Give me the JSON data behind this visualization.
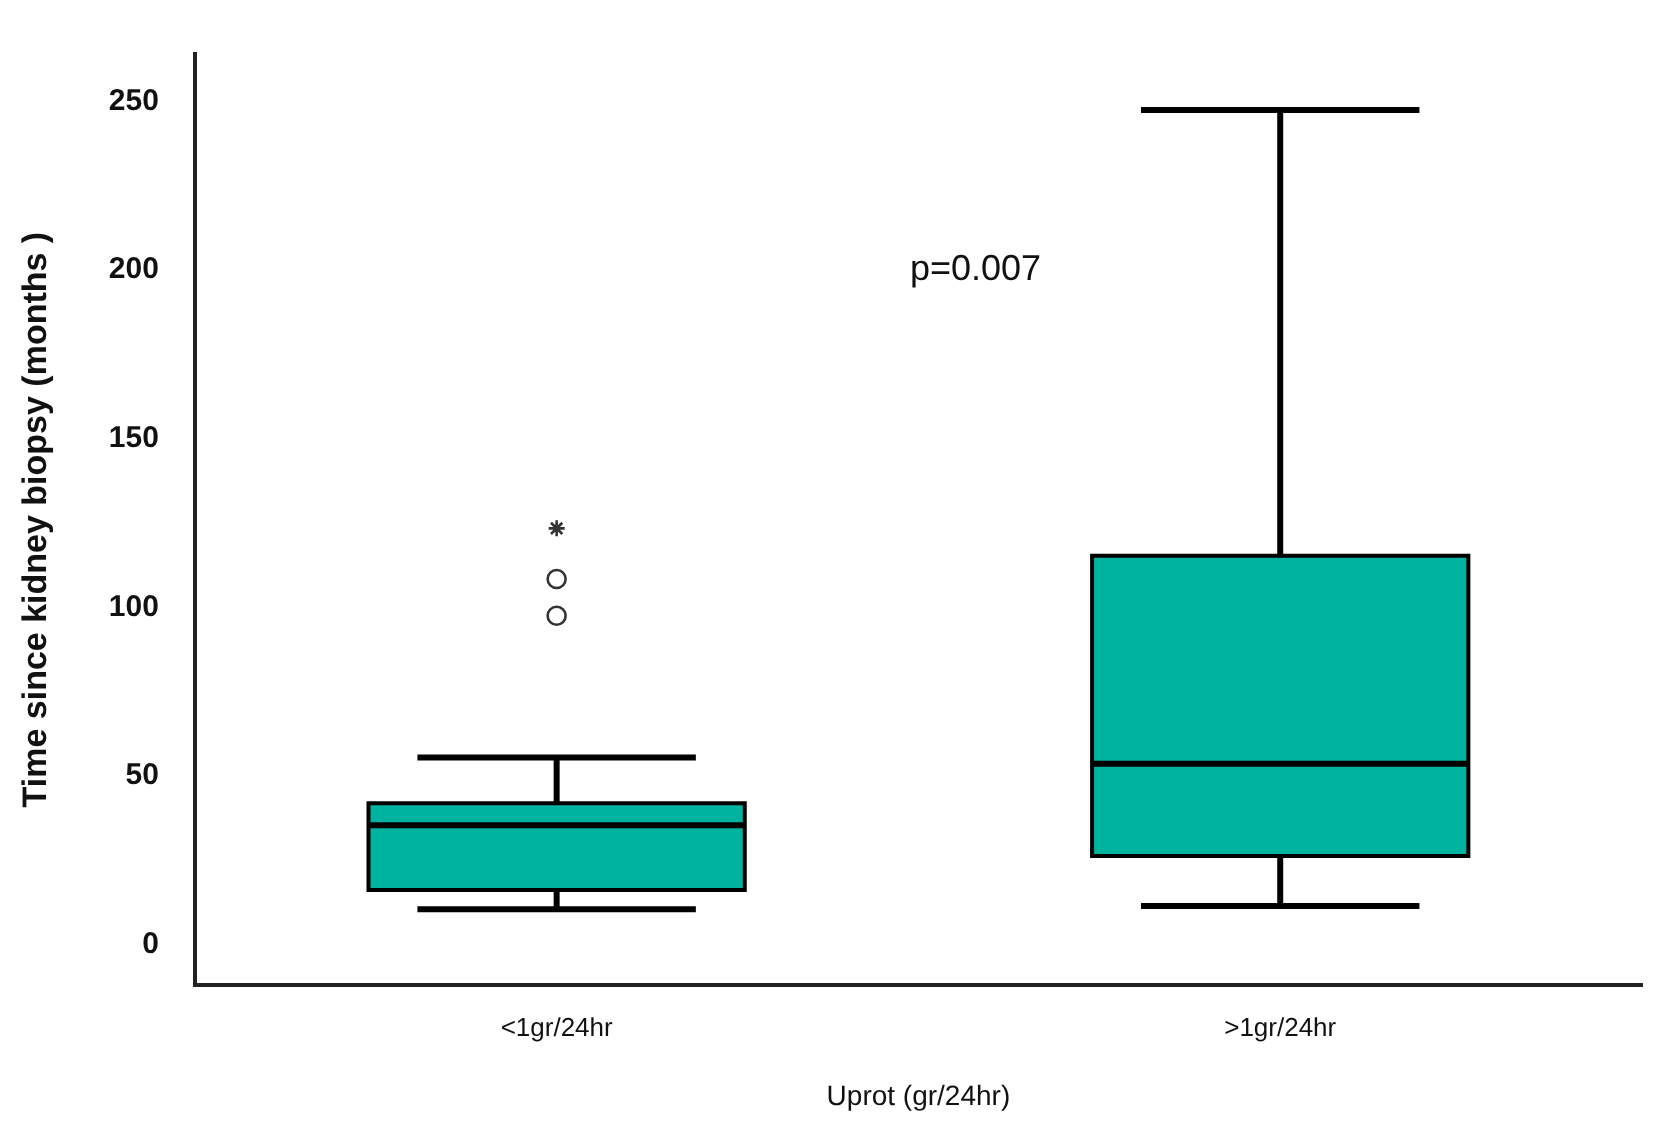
{
  "chart_data": {
    "type": "box",
    "xlabel": "Uprot (gr/24hr)",
    "ylabel": "Time since kidney biopsy (months )",
    "categories": [
      "<1gr/24hr",
      ">1gr/24hr"
    ],
    "color": "#00b3a0",
    "boxes": [
      {
        "low": 10.5,
        "q1": 16.2,
        "median": 35.4,
        "q3": 41.9,
        "high": 55.5,
        "outliers": [
          97.5,
          108.4,
          123.4
        ]
      },
      {
        "low": 11.5,
        "q1": 26.3,
        "median": 53.6,
        "q3": 115.3,
        "high": 247.4
      }
    ],
    "ylim": [
      -12,
      264
    ],
    "yticks": [
      0,
      50,
      100,
      150,
      200,
      250
    ],
    "grid": false,
    "legend": false,
    "annotations": [
      "p=0.007"
    ]
  }
}
